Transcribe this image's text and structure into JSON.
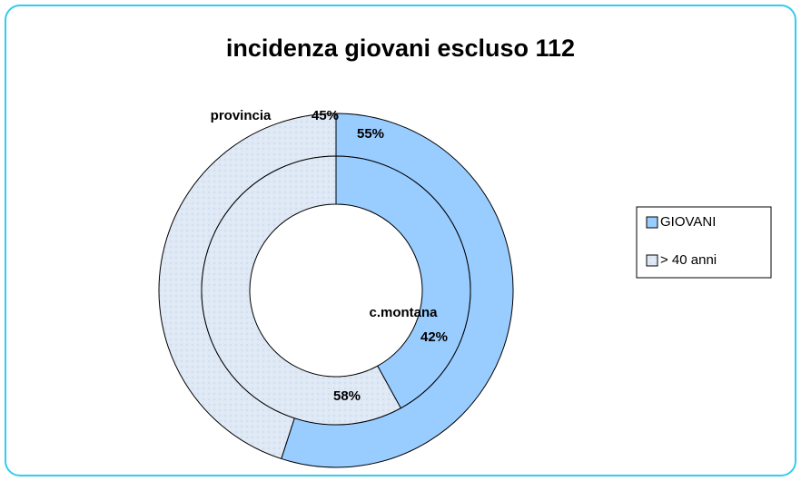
{
  "chart_data": {
    "type": "doughnut",
    "title": "incidenza giovani escluso 112",
    "categories": [
      "GIOVANI",
      "> 40 anni"
    ],
    "colors": [
      "#99ccff",
      "#dfe9f5"
    ],
    "series": [
      {
        "name": "provincia",
        "values": [
          55,
          45
        ],
        "value_labels": [
          "55%",
          "45%"
        ]
      },
      {
        "name": "c.montana",
        "values": [
          42,
          58
        ],
        "value_labels": [
          "42%",
          "58%"
        ]
      }
    ]
  }
}
